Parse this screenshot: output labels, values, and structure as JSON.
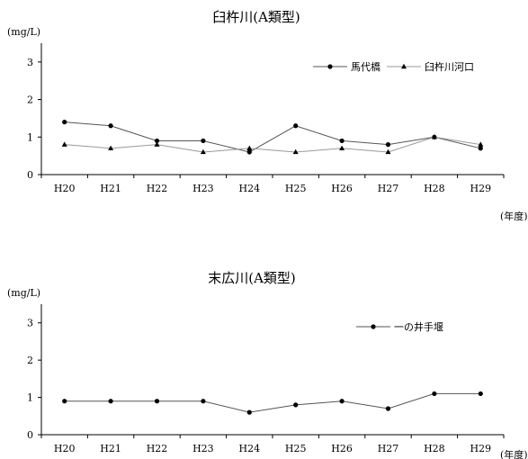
{
  "chart_data": [
    {
      "type": "line",
      "title": "臼杵川(A類型)",
      "ylabel": "(mg/L)",
      "xlabel": "(年度)",
      "categories": [
        "H20",
        "H21",
        "H22",
        "H23",
        "H24",
        "H25",
        "H26",
        "H27",
        "H28",
        "H29"
      ],
      "ylim": [
        0,
        3.5
      ],
      "yticks": [
        0,
        1,
        2,
        3
      ],
      "grid": false,
      "legend_position": "top-right",
      "series": [
        {
          "name": "馬代橋",
          "marker": "circle",
          "line_color": "#555555",
          "values": [
            1.4,
            1.3,
            0.9,
            0.9,
            0.6,
            1.3,
            0.9,
            0.8,
            1.0,
            0.7
          ]
        },
        {
          "name": "臼杵川河口",
          "marker": "triangle",
          "line_color": "#999999",
          "values": [
            0.8,
            0.7,
            0.8,
            0.6,
            0.7,
            0.6,
            0.7,
            0.6,
            1.0,
            0.8
          ]
        }
      ]
    },
    {
      "type": "line",
      "title": "末広川(A類型)",
      "ylabel": "(mg/L)",
      "xlabel": "(年度)",
      "categories": [
        "H20",
        "H21",
        "H22",
        "H23",
        "H24",
        "H25",
        "H26",
        "H27",
        "H28",
        "H29"
      ],
      "ylim": [
        0,
        3.5
      ],
      "yticks": [
        0,
        1,
        2,
        3
      ],
      "grid": false,
      "legend_position": "top-right",
      "series": [
        {
          "name": "一の井手堰",
          "marker": "circle",
          "line_color": "#555555",
          "values": [
            0.9,
            0.9,
            0.9,
            0.9,
            0.6,
            0.8,
            0.9,
            0.7,
            1.1,
            1.1
          ]
        }
      ]
    }
  ]
}
